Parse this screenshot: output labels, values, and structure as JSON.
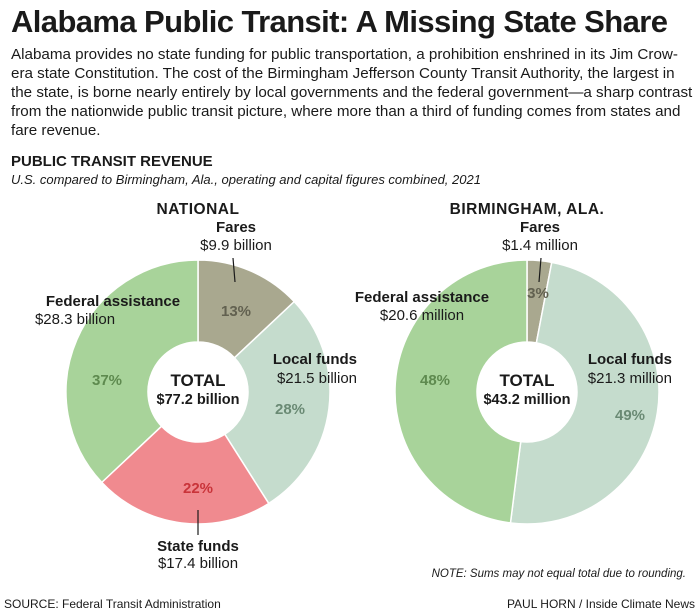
{
  "header": {
    "title": "Alabama Public Transit: A Missing State Share",
    "intro": "Alabama provides no state funding for public transportation, a prohibition enshrined in its Jim Crow-era state Constitution. The cost of the Birmingham Jefferson County Transit Authority, the largest in the state, is borne nearly entirely by local governments and the federal government—a sharp contrast from the nationwide public transit picture, where more than a third of funding comes from states and fare revenue."
  },
  "section": {
    "title": "PUBLIC TRANSIT REVENUE",
    "subtitle": "U.S. compared to Birmingham, Ala., operating and capital figures combined, 2021"
  },
  "colors": {
    "fares": "#a9a88f",
    "local": "#c5dccd",
    "state": "#f08a8f",
    "federal": "#a8d39a",
    "pct_fares": "#626150",
    "pct_local": "#6a8a74",
    "pct_state": "#c9343a",
    "pct_federal": "#5e8a4f"
  },
  "chart_data": [
    {
      "type": "pie",
      "title": "NATIONAL",
      "total_label": "TOTAL",
      "total_value": "$77.2 billion",
      "slices": [
        {
          "key": "fares",
          "name": "Fares",
          "amount": "$9.9 billion",
          "percent": 13
        },
        {
          "key": "local",
          "name": "Local funds",
          "amount": "$21.5 billion",
          "percent": 28
        },
        {
          "key": "state",
          "name": "State funds",
          "amount": "$17.4 billion",
          "percent": 22
        },
        {
          "key": "federal",
          "name": "Federal assistance",
          "amount": "$28.3 billion",
          "percent": 37
        }
      ]
    },
    {
      "type": "pie",
      "title": "BIRMINGHAM, ALA.",
      "total_label": "TOTAL",
      "total_value": "$43.2 million",
      "slices": [
        {
          "key": "fares",
          "name": "Fares",
          "amount": "$1.4 million",
          "percent": 3
        },
        {
          "key": "local",
          "name": "Local funds",
          "amount": "$21.3 million",
          "percent": 49
        },
        {
          "key": "federal",
          "name": "Federal assistance",
          "amount": "$20.6 million",
          "percent": 48
        }
      ]
    }
  ],
  "footer": {
    "note": "NOTE: Sums may not equal total due to rounding.",
    "source": "SOURCE: Federal Transit Administration",
    "credit": "PAUL HORN / Inside Climate News"
  }
}
